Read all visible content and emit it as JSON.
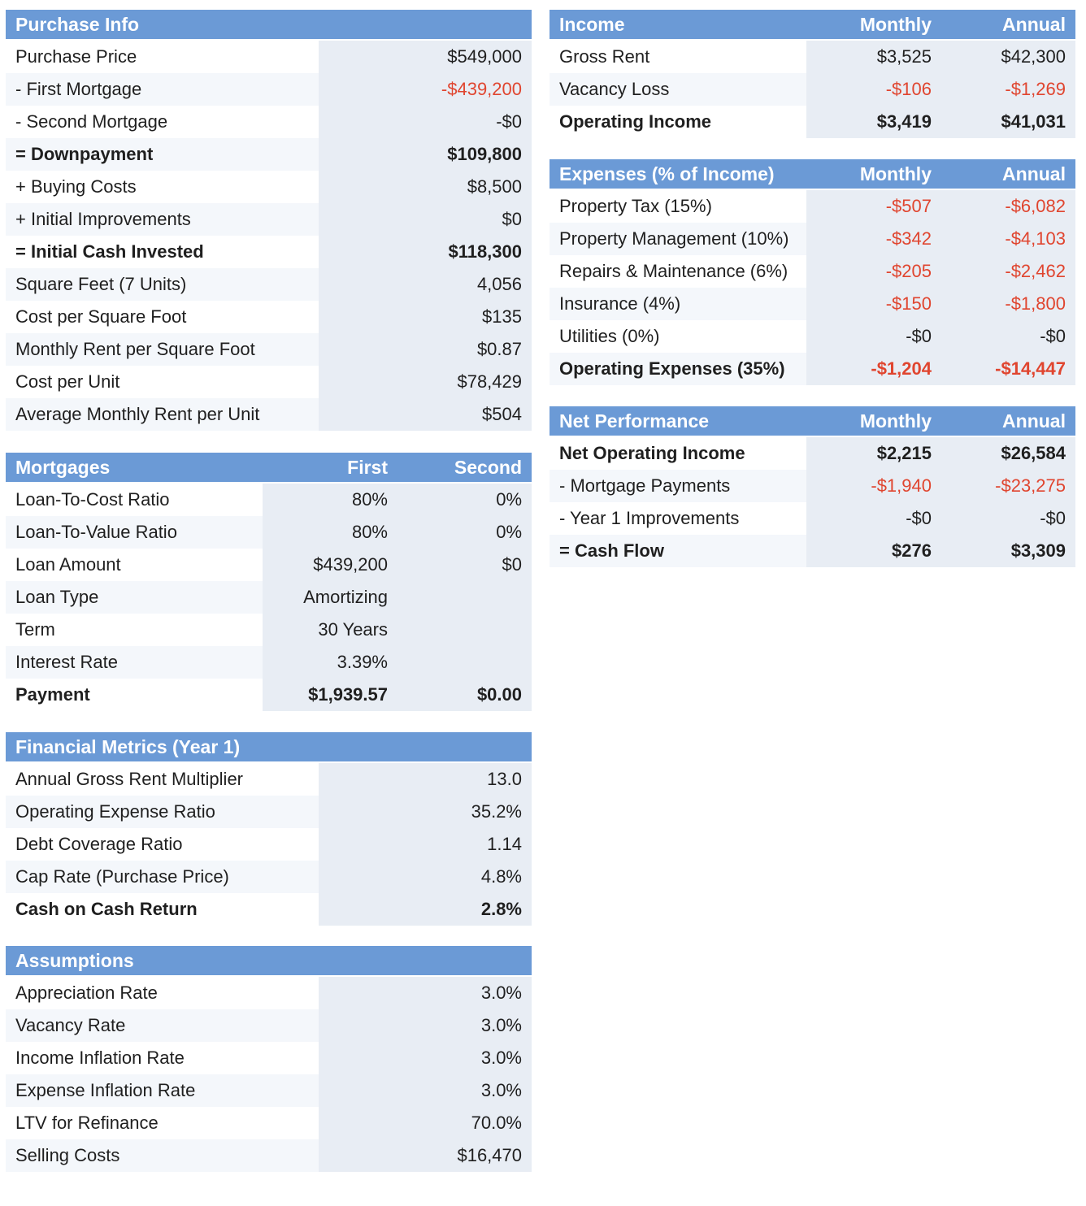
{
  "purchase": {
    "title": "Purchase Info",
    "rows": [
      {
        "label": "Purchase Price",
        "value": "$549,000"
      },
      {
        "label": "- First Mortgage",
        "value": "-$439,200"
      },
      {
        "label": "- Second Mortgage",
        "value": "-$0"
      },
      {
        "label": "= Downpayment",
        "value": "$109,800"
      },
      {
        "label": "+ Buying Costs",
        "value": "$8,500"
      },
      {
        "label": "+ Initial Improvements",
        "value": "$0"
      },
      {
        "label": "= Initial Cash Invested",
        "value": "$118,300"
      },
      {
        "label": "Square Feet (7 Units)",
        "value": "4,056"
      },
      {
        "label": "Cost per Square Foot",
        "value": "$135"
      },
      {
        "label": "Monthly Rent per Square Foot",
        "value": "$0.87"
      },
      {
        "label": "Cost per Unit",
        "value": "$78,429"
      },
      {
        "label": "Average Monthly Rent per Unit",
        "value": "$504"
      }
    ]
  },
  "mortgages": {
    "title": "Mortgages",
    "col1": "First",
    "col2": "Second",
    "rows": [
      {
        "label": "Loan-To-Cost Ratio",
        "first": "80%",
        "second": "0%"
      },
      {
        "label": "Loan-To-Value Ratio",
        "first": "80%",
        "second": "0%"
      },
      {
        "label": "Loan Amount",
        "first": "$439,200",
        "second": "$0"
      },
      {
        "label": "Loan Type",
        "first": "Amortizing",
        "second": ""
      },
      {
        "label": "Term",
        "first": "30 Years",
        "second": ""
      },
      {
        "label": "Interest Rate",
        "first": "3.39%",
        "second": ""
      },
      {
        "label": "Payment",
        "first": "$1,939.57",
        "second": "$0.00"
      }
    ]
  },
  "metrics": {
    "title": "Financial Metrics (Year 1)",
    "rows": [
      {
        "label": "Annual Gross Rent Multiplier",
        "value": "13.0"
      },
      {
        "label": "Operating Expense Ratio",
        "value": "35.2%"
      },
      {
        "label": "Debt Coverage Ratio",
        "value": "1.14"
      },
      {
        "label": "Cap Rate (Purchase Price)",
        "value": "4.8%"
      },
      {
        "label": "Cash on Cash Return",
        "value": "2.8%"
      }
    ]
  },
  "assumptions": {
    "title": "Assumptions",
    "rows": [
      {
        "label": "Appreciation Rate",
        "value": "3.0%"
      },
      {
        "label": "Vacancy Rate",
        "value": "3.0%"
      },
      {
        "label": "Income Inflation Rate",
        "value": "3.0%"
      },
      {
        "label": "Expense Inflation Rate",
        "value": "3.0%"
      },
      {
        "label": "LTV for Refinance",
        "value": "70.0%"
      },
      {
        "label": "Selling Costs",
        "value": "$16,470"
      }
    ]
  },
  "income": {
    "title": "Income",
    "monthly": "Monthly",
    "annual": "Annual",
    "rows": [
      {
        "label": "Gross Rent",
        "monthly": "$3,525",
        "annual": "$42,300"
      },
      {
        "label": "Vacancy Loss",
        "monthly": "-$106",
        "annual": "-$1,269"
      },
      {
        "label": "Operating Income",
        "monthly": "$3,419",
        "annual": "$41,031"
      }
    ]
  },
  "expenses": {
    "title": "Expenses (% of Income)",
    "monthly": "Monthly",
    "annual": "Annual",
    "rows": [
      {
        "label": "Property Tax (15%)",
        "monthly": "-$507",
        "annual": "-$6,082"
      },
      {
        "label": "Property Management (10%)",
        "monthly": "-$342",
        "annual": "-$4,103"
      },
      {
        "label": "Repairs & Maintenance (6%)",
        "monthly": "-$205",
        "annual": "-$2,462"
      },
      {
        "label": "Insurance (4%)",
        "monthly": "-$150",
        "annual": "-$1,800"
      },
      {
        "label": "Utilities (0%)",
        "monthly": "-$0",
        "annual": "-$0"
      },
      {
        "label": "Operating Expenses (35%)",
        "monthly": "-$1,204",
        "annual": "-$14,447"
      }
    ]
  },
  "net": {
    "title": "Net Performance",
    "monthly": "Monthly",
    "annual": "Annual",
    "rows": [
      {
        "label": "Net Operating Income",
        "monthly": "$2,215",
        "annual": "$26,584"
      },
      {
        "label": "- Mortgage Payments",
        "monthly": "-$1,940",
        "annual": "-$23,275"
      },
      {
        "label": "- Year 1 Improvements",
        "monthly": "-$0",
        "annual": "-$0"
      },
      {
        "label": "= Cash Flow",
        "monthly": "$276",
        "annual": "$3,309"
      }
    ]
  },
  "colors": {
    "header": "#6b9ad6",
    "negative": "#e0452f",
    "value_cell": "#e8edf4"
  }
}
